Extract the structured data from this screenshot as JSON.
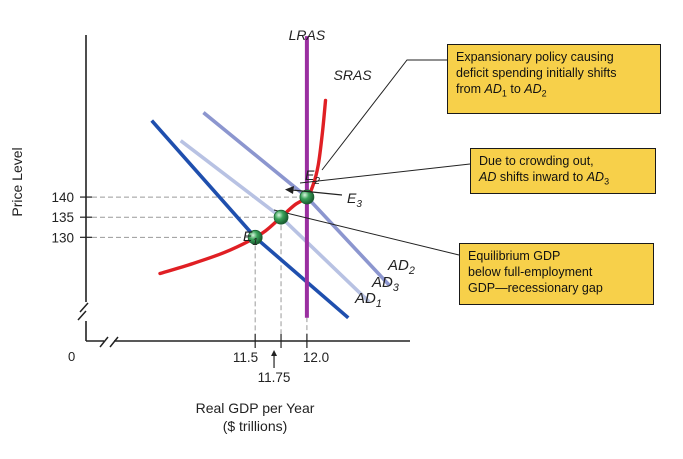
{
  "chart_data": {
    "type": "line",
    "xlabel_lines": [
      "Real GDP per Year",
      "($ trillions)"
    ],
    "ylabel": "Price Level",
    "origin_label": "0",
    "x_ticks": [
      {
        "value": 11.5,
        "label": "11.5"
      },
      {
        "value": 11.75,
        "label": "11.75"
      },
      {
        "value": 12.0,
        "label": "12.0"
      }
    ],
    "y_ticks": [
      {
        "value": 130,
        "label": "130"
      },
      {
        "value": 135,
        "label": "135"
      },
      {
        "value": 140,
        "label": "140"
      }
    ],
    "xlim": [
      10.0,
      12.9
    ],
    "ylim": [
      102,
      184
    ],
    "lras": {
      "name": "LRAS",
      "x": 12.0,
      "y_range": [
        110,
        180
      ],
      "color": "#9a2fa0"
    },
    "sras": {
      "name": "SRAS",
      "color": "#e01f24",
      "points": [
        [
          10.58,
          121
        ],
        [
          10.9,
          123.5
        ],
        [
          11.2,
          126.2
        ],
        [
          11.45,
          129.2
        ],
        [
          11.6,
          131.6
        ],
        [
          11.75,
          135
        ],
        [
          11.88,
          138
        ],
        [
          12.0,
          140
        ],
        [
          12.06,
          143
        ],
        [
          12.11,
          148
        ],
        [
          12.15,
          156
        ],
        [
          12.18,
          164
        ]
      ]
    },
    "ad_curves": [
      {
        "name": "AD",
        "subscript": "1",
        "color": "#1f4fae",
        "points": [
          [
            10.5,
            159
          ],
          [
            11.5,
            130
          ],
          [
            12.4,
            110
          ]
        ]
      },
      {
        "name": "AD",
        "subscript": "3",
        "color": "#b8c2e3",
        "points": [
          [
            10.78,
            154
          ],
          [
            11.75,
            135
          ],
          [
            12.6,
            114
          ]
        ]
      },
      {
        "name": "AD",
        "subscript": "2",
        "color": "#8c96cf",
        "points": [
          [
            11.0,
            161
          ],
          [
            12.0,
            140
          ],
          [
            12.8,
            118
          ]
        ]
      }
    ],
    "equilibria": [
      {
        "name": "E",
        "subscript": "1",
        "x": 11.5,
        "y": 130
      },
      {
        "name": "E",
        "subscript": "3",
        "x": 11.75,
        "y": 135
      },
      {
        "name": "E",
        "subscript": "2",
        "x": 12.0,
        "y": 140
      }
    ],
    "grid": false
  },
  "annotations": {
    "box1": {
      "line1": "Expansionary policy causing",
      "line2": "deficit spending initially shifts",
      "line3_prefix": "from ",
      "ad_sym": "AD",
      "sub_a": "1",
      "mid": " to ",
      "sub_b": "2"
    },
    "box2": {
      "line1": "Due to crowding out,",
      "ad_sym": "AD",
      "line2_mid": " shifts inward to ",
      "sub": "3"
    },
    "box3": {
      "line1": "Equilibrium GDP",
      "line2": "below full-employment",
      "line3": "GDP—recessionary gap"
    }
  },
  "colors": {
    "callout_fill": "#f7d04a",
    "axis": "#222222",
    "guide": "#9a9a9a",
    "point": "#3aa35a"
  }
}
